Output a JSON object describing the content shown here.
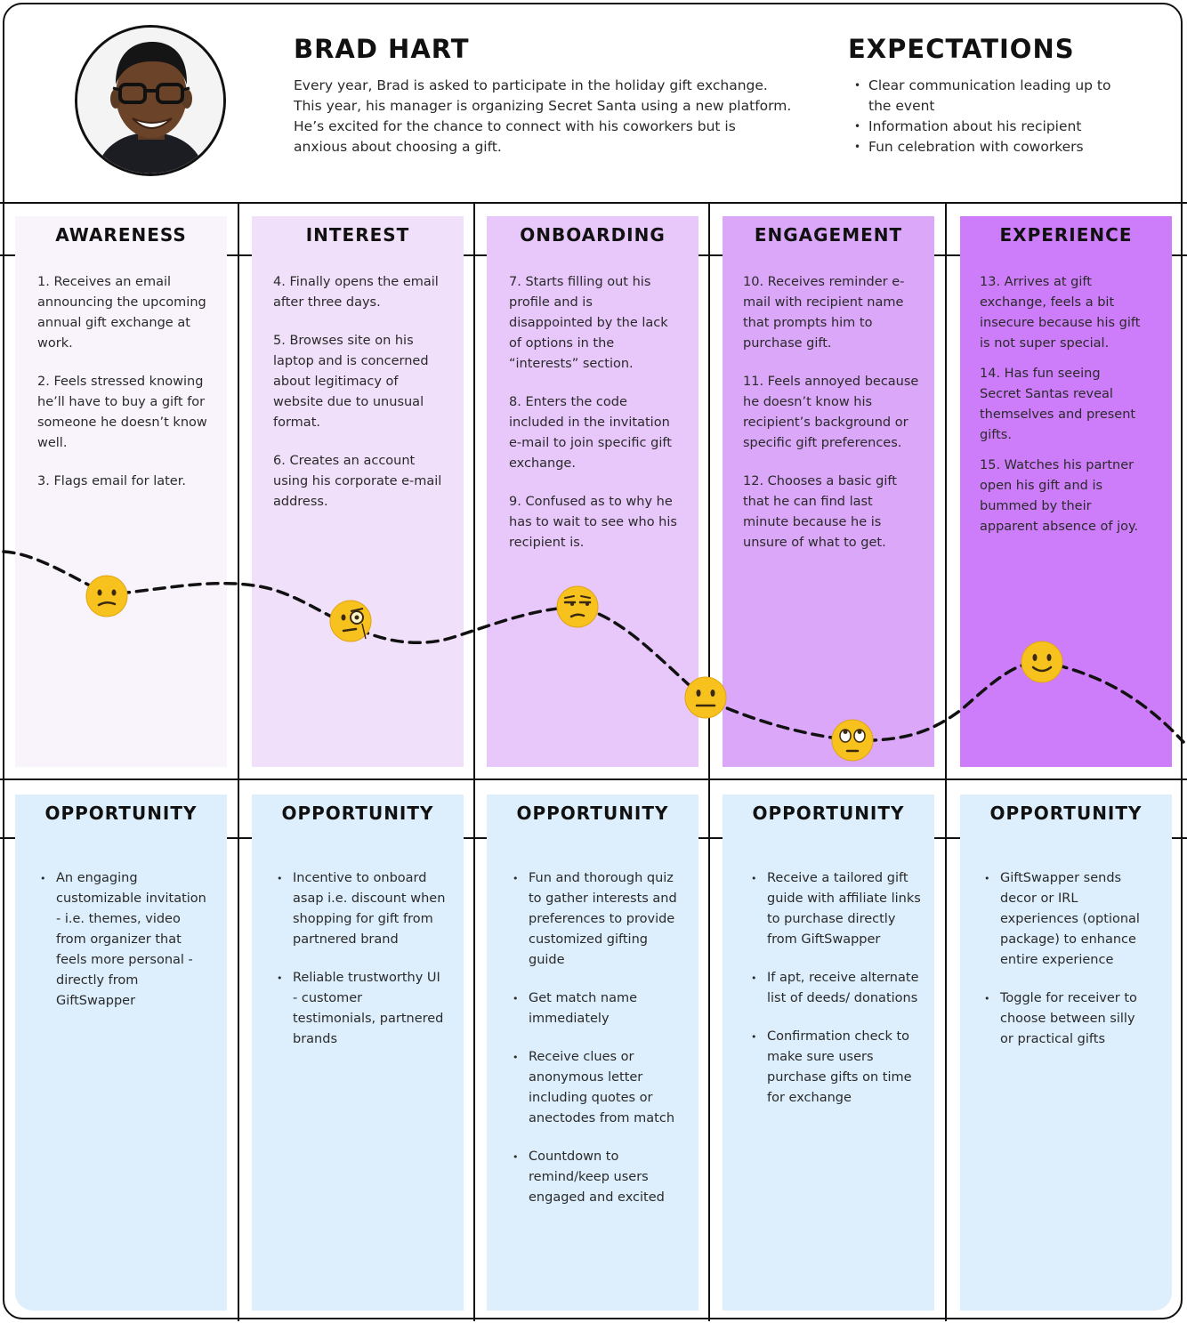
{
  "persona": {
    "name": "BRAD HART",
    "bio": "Every year, Brad is asked to participate in the holiday gift exchange. This year, his manager is organizing Secret Santa using a new platform. He’s excited for the chance to connect with his coworkers but is anxious about choosing a gift."
  },
  "expectations": {
    "title": "EXPECTATIONS",
    "items": [
      "Clear  communication leading up to the event",
      "Information about his recipient",
      "Fun celebration with coworkers"
    ]
  },
  "stages": [
    {
      "label": "AWARENESS",
      "color": "#f9f4fc",
      "steps": [
        "1. Receives an email announcing the upcoming annual gift exchange at work.",
        "2. Feels stressed knowing he’ll have to buy a gift for someone he doesn’t know well.",
        "3. Flags email for later."
      ]
    },
    {
      "label": "INTEREST",
      "color": "#f1e0fa",
      "steps": [
        "4. Finally opens the email after three days.",
        "5. Browses site on his laptop and is concerned about legitimacy of website due to unusual format.",
        "6. Creates an account using his corporate e-mail address."
      ]
    },
    {
      "label": "ONBOARDING",
      "color": "#e8c8fb",
      "steps": [
        "7. Starts filling out his profile and is disappointed by the lack of options in the “interests” section.",
        "8. Enters the code included in the invitation e-mail to join specific gift exchange.",
        "9. Confused as to why he has to wait to see who his recipient is."
      ]
    },
    {
      "label": "ENGAGEMENT",
      "color": "#dba7f9",
      "steps": [
        "10. Receives reminder e-mail with recipient name that prompts him to purchase gift.",
        "11. Feels annoyed because he doesn’t know his recipient’s background or specific gift preferences.",
        "12. Chooses a basic gift that he can find last minute because he is unsure of what to get."
      ]
    },
    {
      "label": "EXPERIENCE",
      "color": "#cd7df9",
      "steps": [
        "13. Arrives at gift exchange, feels a bit insecure because his gift is not super special.",
        "14. Has fun seeing Secret Santas reveal themselves and present gifts.",
        "15. Watches his partner open his gift and is bummed by their apparent absence of joy."
      ]
    }
  ],
  "opportunities": [
    {
      "label": "OPPORTUNITY",
      "items": [
        "An engaging customizable invitation - i.e. themes, video from organizer that feels more personal - directly from GiftSwapper"
      ]
    },
    {
      "label": "OPPORTUNITY",
      "items": [
        "Incentive to onboard asap i.e. discount when shopping for gift from partnered brand",
        "Reliable trustworthy UI - customer testimonials, partnered brands"
      ]
    },
    {
      "label": "OPPORTUNITY",
      "items": [
        "Fun and thorough quiz to gather interests and preferences to provide customized gifting guide",
        "Get match name immediately",
        "Receive clues or anonymous letter including quotes or anectodes from match",
        "Countdown to remind/keep users engaged and excited"
      ]
    },
    {
      "label": "OPPORTUNITY",
      "items": [
        "Receive a tailored gift guide with affiliate links to purchase directly from GiftSwapper",
        "If apt, receive alternate list of deeds/ donations",
        "Confirmation check to make sure users purchase gifts on time for exchange"
      ]
    },
    {
      "label": "OPPORTUNITY",
      "items": [
        "GiftSwapper sends decor or IRL experiences (optional package) to enhance entire experience",
        "Toggle for receiver to choose between silly or practical gifts"
      ]
    }
  ],
  "emotions": [
    "confused-face",
    "face-with-monocle",
    "unamused-face",
    "neutral-face",
    "eye-roll-face",
    "slightly-smiling-face"
  ],
  "colors": {
    "opportunity_bg": "#ddeefc",
    "line": "#111111",
    "emoji": "#f7c21d"
  }
}
